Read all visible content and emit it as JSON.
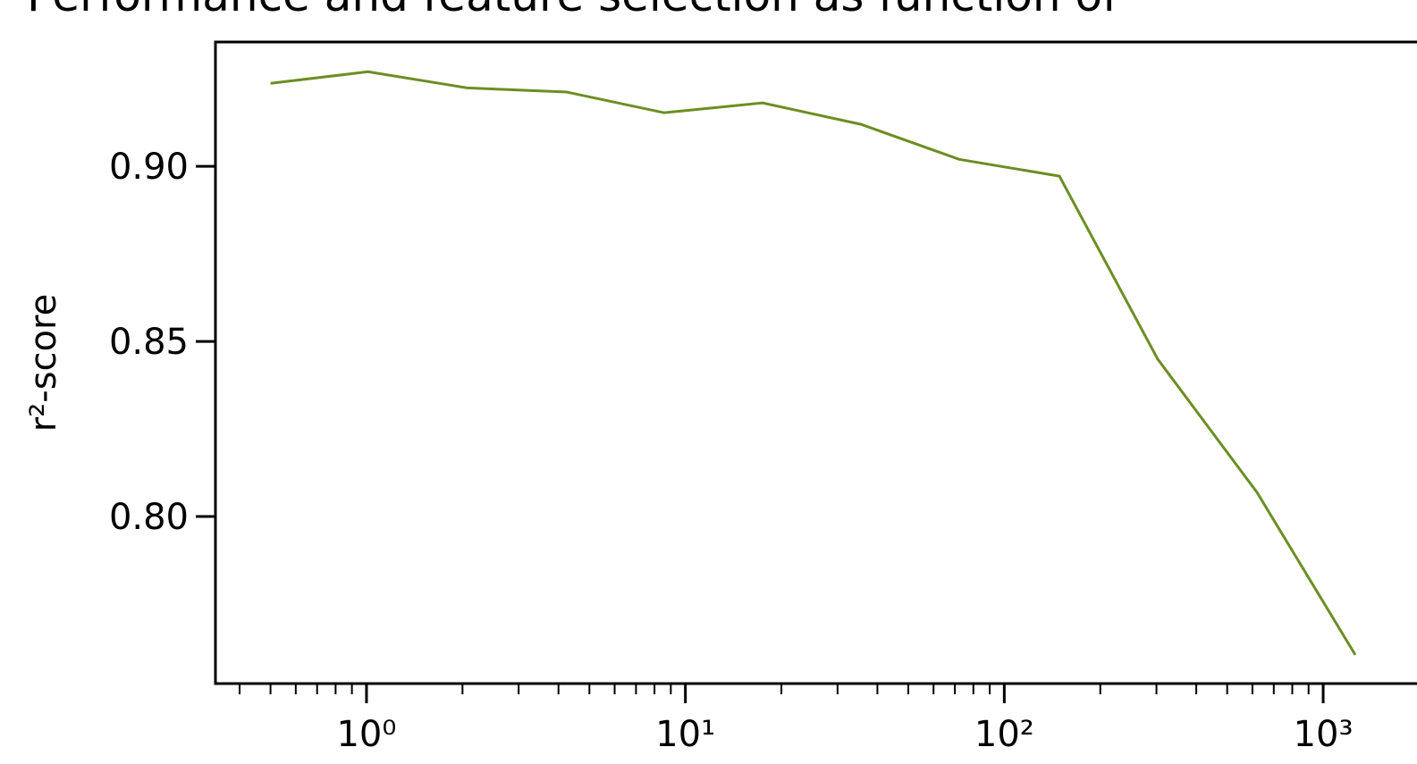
{
  "chart_data": {
    "type": "line",
    "title": "Performance and feature selection as function of",
    "ylabel": "r²-score",
    "x": [
      0.5,
      1.01,
      2.07,
      4.25,
      8.58,
      17.46,
      35.5,
      72.2,
      148.9,
      303,
      620,
      1261
    ],
    "series": [
      {
        "color": "#6b8e23",
        "values": [
          0.9237,
          0.927,
          0.9224,
          0.9212,
          0.9153,
          0.9181,
          0.912,
          0.902,
          0.8972,
          0.8449,
          0.8069,
          0.7605
        ]
      }
    ],
    "xscale": "log",
    "xlim": [
      0.336,
      2500
    ],
    "ylim": [
      0.7523,
      0.9355
    ],
    "xticks": [
      {
        "value": 1,
        "label": "10⁰"
      },
      {
        "value": 10,
        "label": "10¹"
      },
      {
        "value": 100,
        "label": "10²"
      },
      {
        "value": 1000,
        "label": "10³"
      }
    ],
    "xminorticks": [
      0.4,
      0.5,
      0.6,
      0.7,
      0.8,
      0.9,
      2,
      3,
      4,
      5,
      6,
      7,
      8,
      9,
      20,
      30,
      40,
      50,
      60,
      70,
      80,
      90,
      200,
      300,
      400,
      500,
      600,
      700,
      800,
      900
    ],
    "yticks": [
      {
        "value": 0.8,
        "label": "0.80"
      },
      {
        "value": 0.85,
        "label": "0.85"
      },
      {
        "value": 0.9,
        "label": "0.90"
      }
    ],
    "grid": false
  }
}
